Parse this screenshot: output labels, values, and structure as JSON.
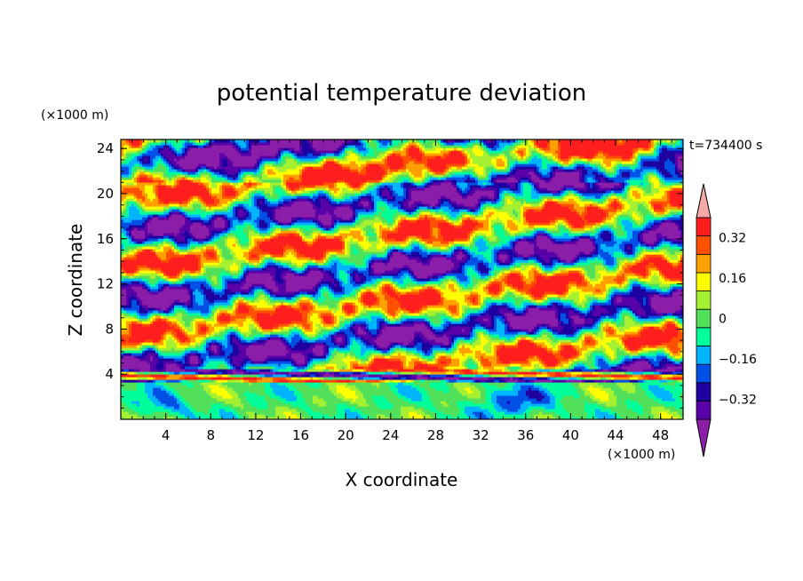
{
  "chart_data": {
    "type": "heatmap",
    "title": "potential temperature deviation",
    "time_label": "t=734400 s",
    "xlabel": "X coordinate",
    "ylabel": "Z coordinate",
    "x_unit": "(×1000 m)",
    "y_unit": "(×1000 m)",
    "xlim": [
      0,
      50
    ],
    "ylim": [
      0,
      24.8
    ],
    "x_ticks": [
      4,
      8,
      12,
      16,
      20,
      24,
      28,
      32,
      36,
      40,
      44,
      48
    ],
    "y_ticks": [
      4,
      8,
      12,
      16,
      20,
      24
    ],
    "colorbar": {
      "levels": [
        -0.4,
        -0.32,
        -0.24,
        -0.16,
        -0.08,
        0,
        0.08,
        0.16,
        0.24,
        0.32,
        0.4
      ],
      "labeled_levels": [
        "0.32",
        "0.16",
        "0",
        "−0.16",
        "−0.32"
      ],
      "labeled_values": [
        0.32,
        0.16,
        0,
        -0.16,
        -0.32
      ],
      "colors": [
        "#8a1ea8",
        "#5a00a8",
        "#1e00a0",
        "#0050e6",
        "#00b4ff",
        "#00ff9a",
        "#52e05a",
        "#a6f032",
        "#ffff00",
        "#ffa000",
        "#ff5000",
        "#ff1e1e",
        "#f5a8a8"
      ],
      "extend": "both"
    }
  }
}
